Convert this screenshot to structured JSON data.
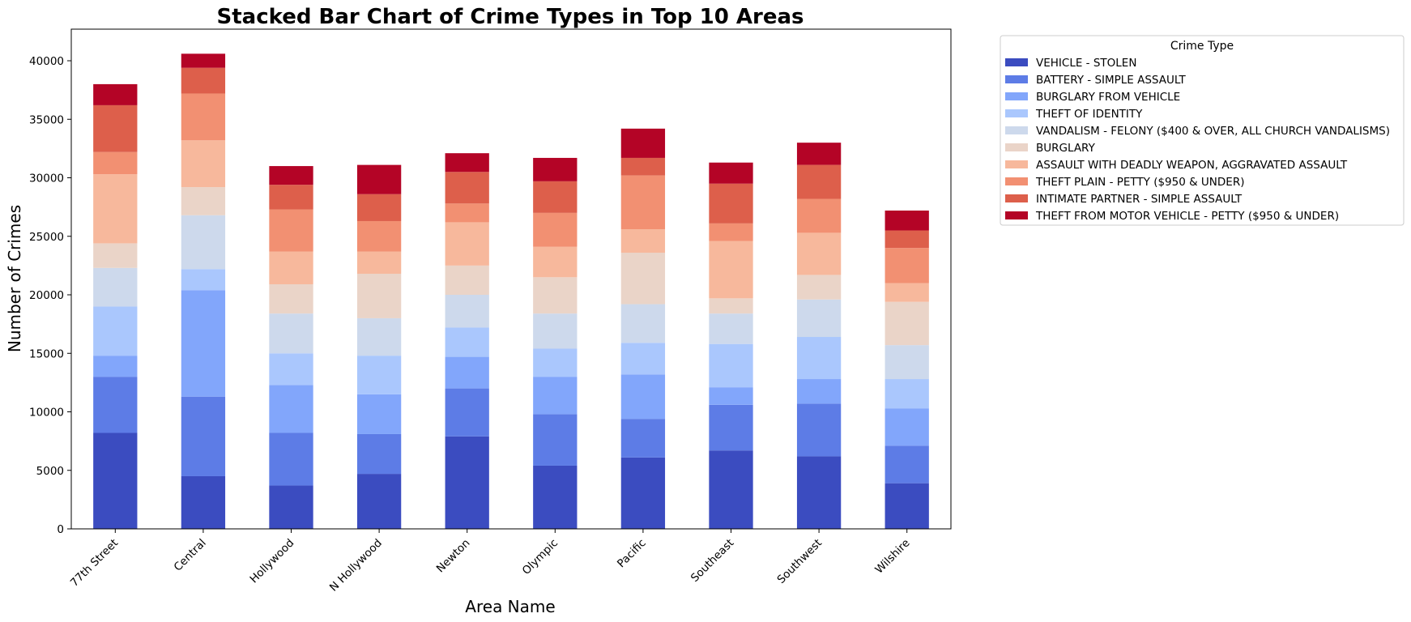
{
  "chart_data": {
    "type": "bar",
    "stacked": true,
    "title": "Stacked Bar Chart of Crime Types in Top 10 Areas",
    "xlabel": "Area Name",
    "ylabel": "Number of Crimes",
    "ylim": [
      0,
      42700
    ],
    "yticks": [
      0,
      5000,
      10000,
      15000,
      20000,
      25000,
      30000,
      35000,
      40000
    ],
    "grid": false,
    "legend_title": "Crime Type",
    "legend_position": "outside-upper-right",
    "categories": [
      "77th Street",
      "Central",
      "Hollywood",
      "N Hollywood",
      "Newton",
      "Olympic",
      "Pacific",
      "Southeast",
      "Southwest",
      "Wilshire"
    ],
    "series": [
      {
        "name": "VEHICLE - STOLEN",
        "color": "#3b4cc0",
        "values": [
          8200,
          4500,
          3700,
          4700,
          7900,
          5400,
          6100,
          6700,
          6200,
          3900
        ]
      },
      {
        "name": "BATTERY - SIMPLE ASSAULT",
        "color": "#5d7ce6",
        "values": [
          4800,
          6800,
          4500,
          3400,
          4100,
          4400,
          3300,
          3900,
          4500,
          3200
        ]
      },
      {
        "name": "BURGLARY FROM VEHICLE",
        "color": "#82a6fb",
        "values": [
          1800,
          9100,
          4100,
          3400,
          2700,
          3200,
          3800,
          1500,
          2100,
          3200
        ]
      },
      {
        "name": "THEFT OF IDENTITY",
        "color": "#aac7fd",
        "values": [
          4200,
          1800,
          2700,
          3300,
          2500,
          2400,
          2700,
          3700,
          3600,
          2500
        ]
      },
      {
        "name": "VANDALISM - FELONY ($400 & OVER, ALL CHURCH VANDALISMS)",
        "color": "#cdd9ec",
        "values": [
          3300,
          4600,
          3400,
          3200,
          2800,
          3000,
          3300,
          2600,
          3200,
          2900
        ]
      },
      {
        "name": "BURGLARY",
        "color": "#ead4c8",
        "values": [
          2100,
          2400,
          2500,
          3800,
          2500,
          3100,
          4400,
          1300,
          2100,
          3700
        ]
      },
      {
        "name": "ASSAULT WITH DEADLY WEAPON, AGGRAVATED ASSAULT",
        "color": "#f7b89c",
        "values": [
          5900,
          4000,
          2800,
          1900,
          3700,
          2600,
          2000,
          4900,
          3600,
          1600
        ]
      },
      {
        "name": "THEFT PLAIN - PETTY ($950 & UNDER)",
        "color": "#f29072",
        "values": [
          1900,
          4000,
          3600,
          2600,
          1600,
          2900,
          4600,
          1500,
          2900,
          3000
        ]
      },
      {
        "name": "INTIMATE PARTNER - SIMPLE ASSAULT",
        "color": "#dd5f4b",
        "values": [
          4000,
          2200,
          2100,
          2300,
          2700,
          2700,
          1500,
          3400,
          2900,
          1500
        ]
      },
      {
        "name": "THEFT FROM MOTOR VEHICLE - PETTY ($950 & UNDER)",
        "color": "#b40426",
        "values": [
          1800,
          1200,
          1600,
          2500,
          1600,
          2000,
          2500,
          1800,
          1900,
          1700
        ]
      }
    ]
  }
}
